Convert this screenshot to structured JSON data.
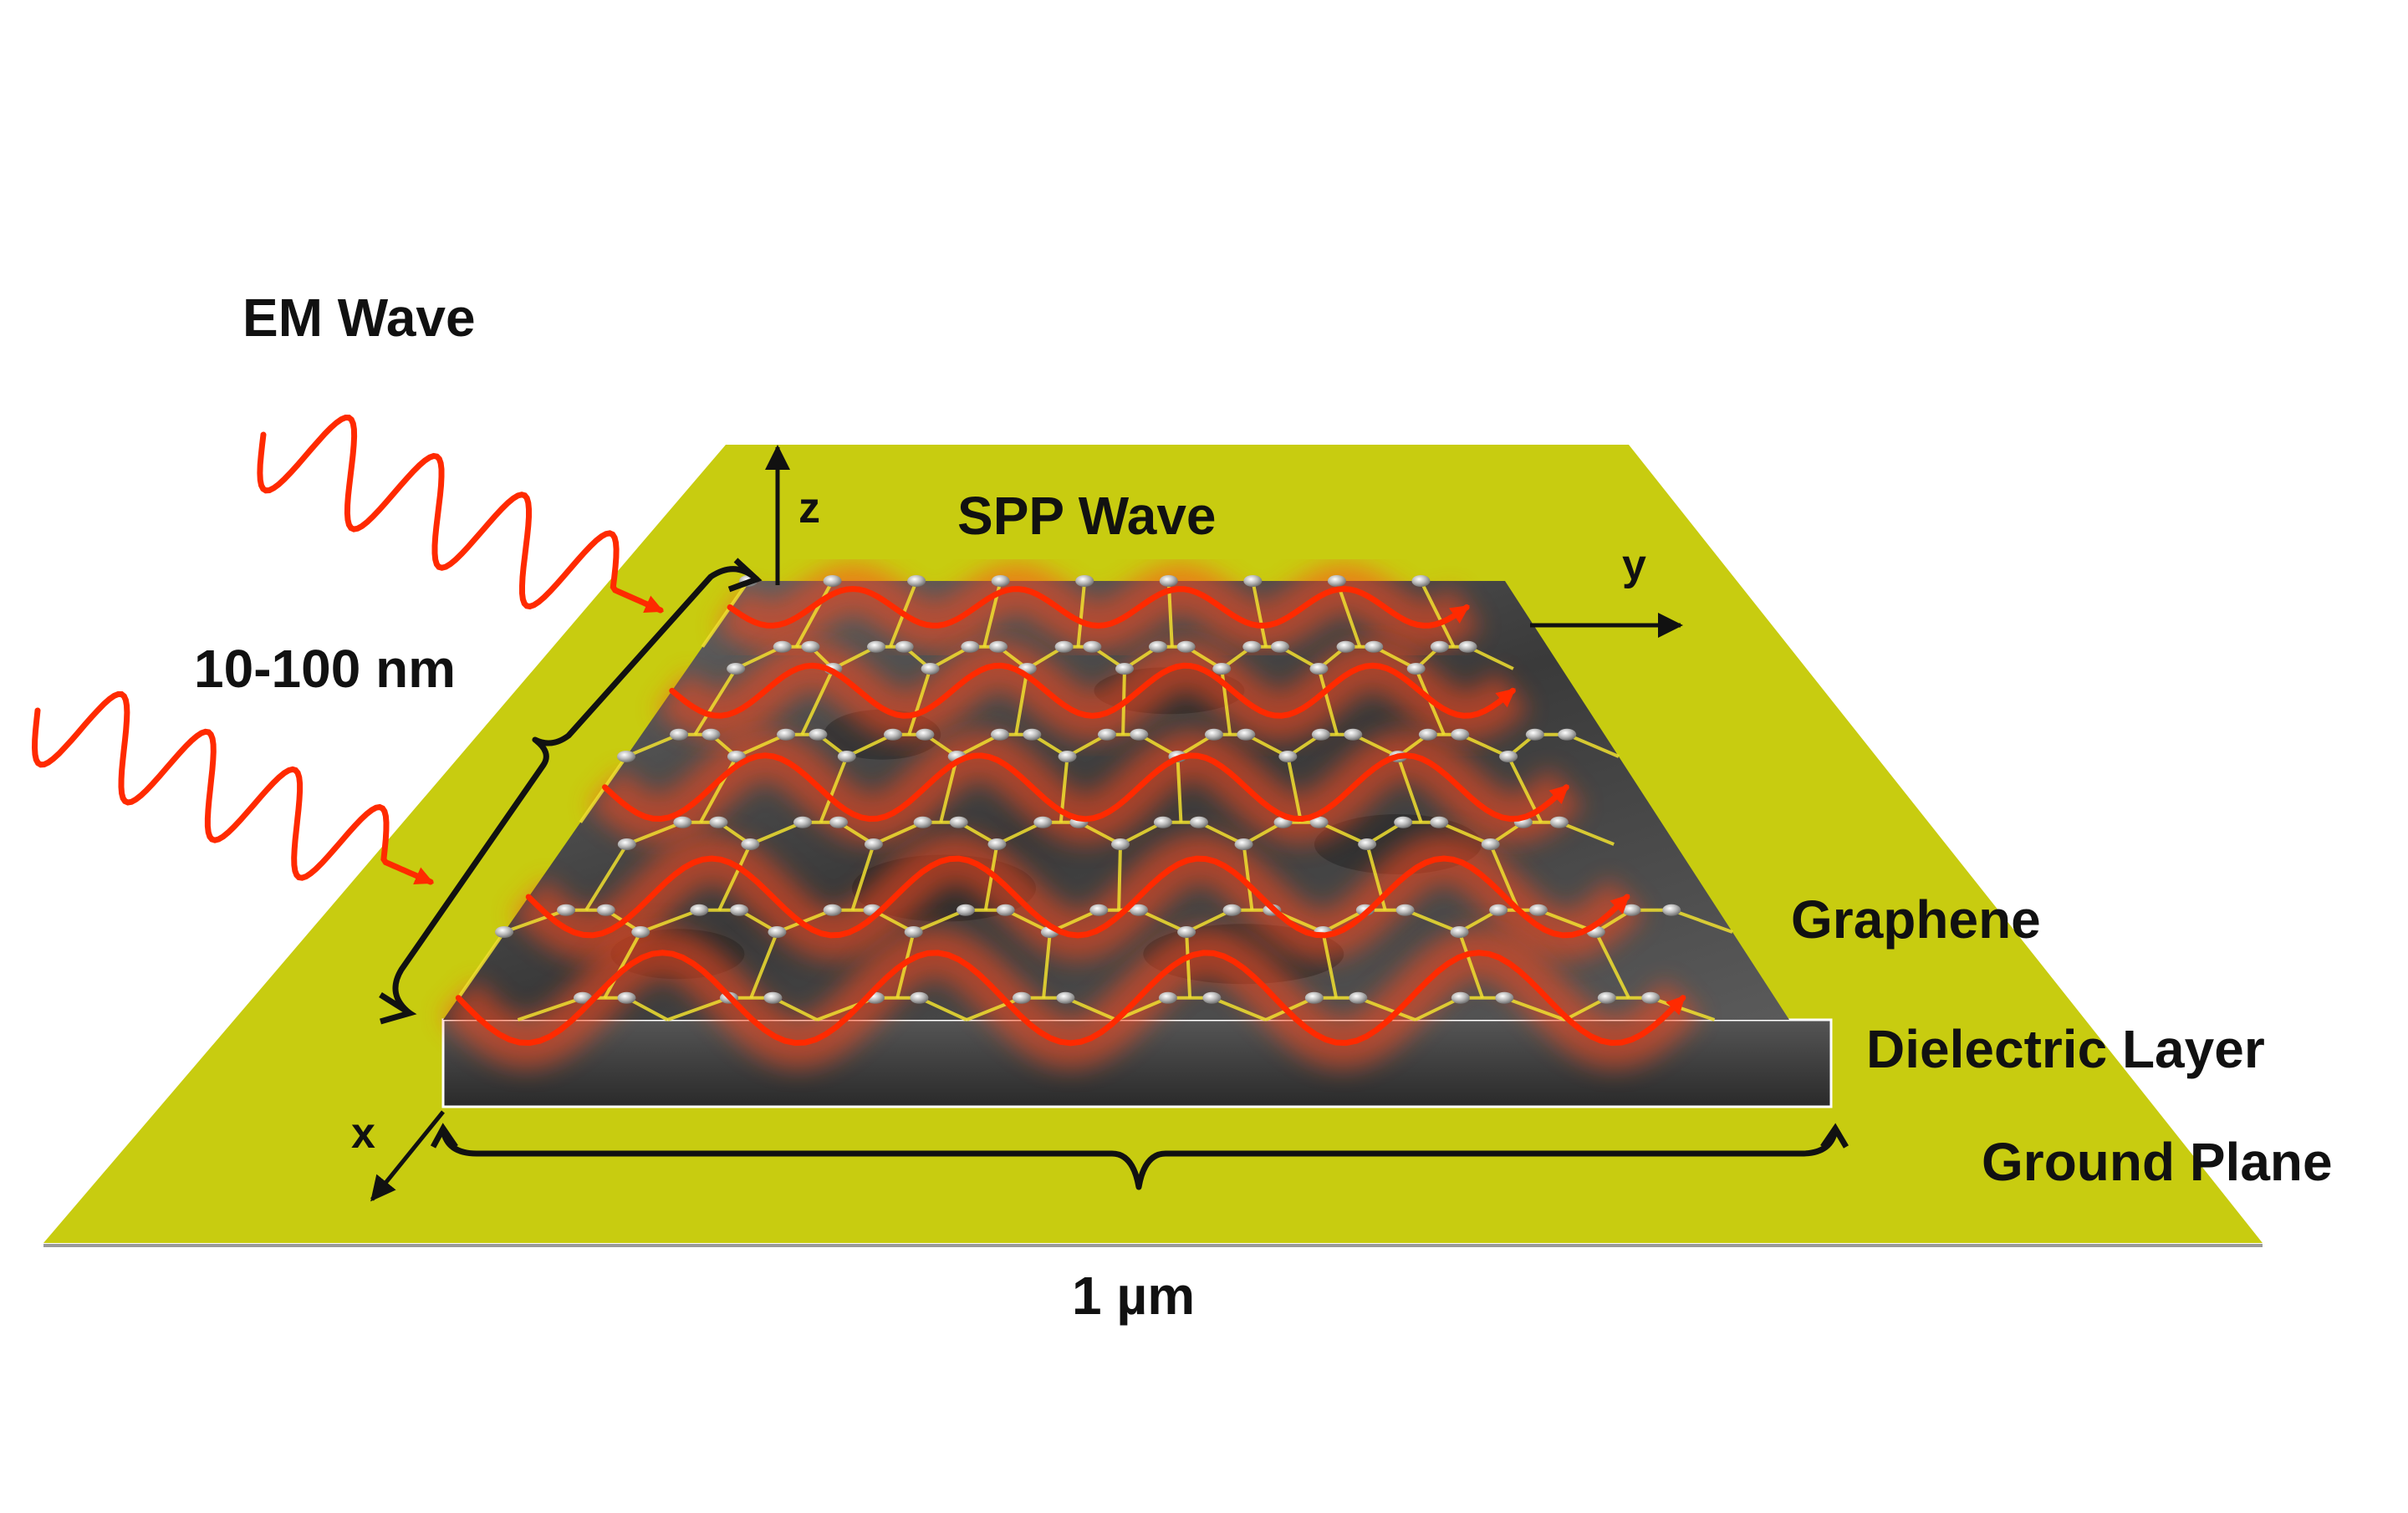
{
  "labels": {
    "em_wave": "EM Wave",
    "spp_wave": "SPP Wave",
    "thickness": "10-100 nm",
    "width": "1 µm",
    "graphene": "Graphene",
    "dielectric_layer": "Dielectric Layer",
    "ground_plane": "Ground Plane"
  },
  "axes": {
    "x": "x",
    "y": "y",
    "z": "z"
  },
  "colors": {
    "ground_plane": "#c8cc10",
    "dielectric": "#3c3c3c",
    "graphene_surface": "#505050",
    "lattice_bonds": "#f0e030",
    "wave": "#ff2a00"
  },
  "icons": {
    "incident_wave": "sine-arrow",
    "surface_wave": "sine-arrow",
    "dimension_brace": "curly-brace"
  }
}
